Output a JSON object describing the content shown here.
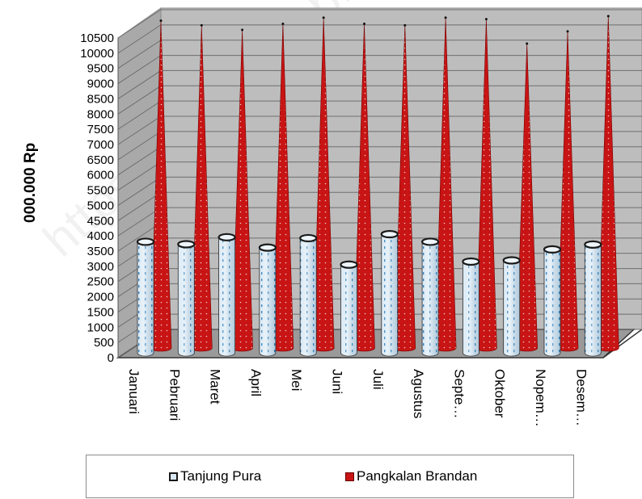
{
  "watermark": "https://langkatkab.bps.go.id",
  "chart_data": {
    "type": "bar",
    "bar_shape_note": "3d",
    "ylabel": "000.000 Rp",
    "xlabel": "",
    "ylim": [
      0,
      10500
    ],
    "ytick_step": 500,
    "grid": true,
    "legend_position": "bottom",
    "categories": [
      "Januari",
      "Pebruari",
      "Maret",
      "April",
      "Mei",
      "Juni",
      "Juli",
      "Agustus",
      "Septe…",
      "Oktober",
      "Nopem…",
      "Desem…"
    ],
    "series": [
      {
        "name": "Tanjung Pura",
        "color": "#dbeaf5",
        "dot_color": "#2a7ab8",
        "values": [
          3700,
          3620,
          3850,
          3510,
          3820,
          2950,
          3950,
          3700,
          3050,
          3090,
          3450,
          3610
        ]
      },
      {
        "name": "Pangkalan Brandan",
        "color": "#c81414",
        "dot_color": "#f0c8c8",
        "values": [
          10800,
          10650,
          10500,
          10700,
          10900,
          10700,
          10650,
          10900,
          10850,
          10050,
          10450,
          10950
        ]
      }
    ]
  }
}
